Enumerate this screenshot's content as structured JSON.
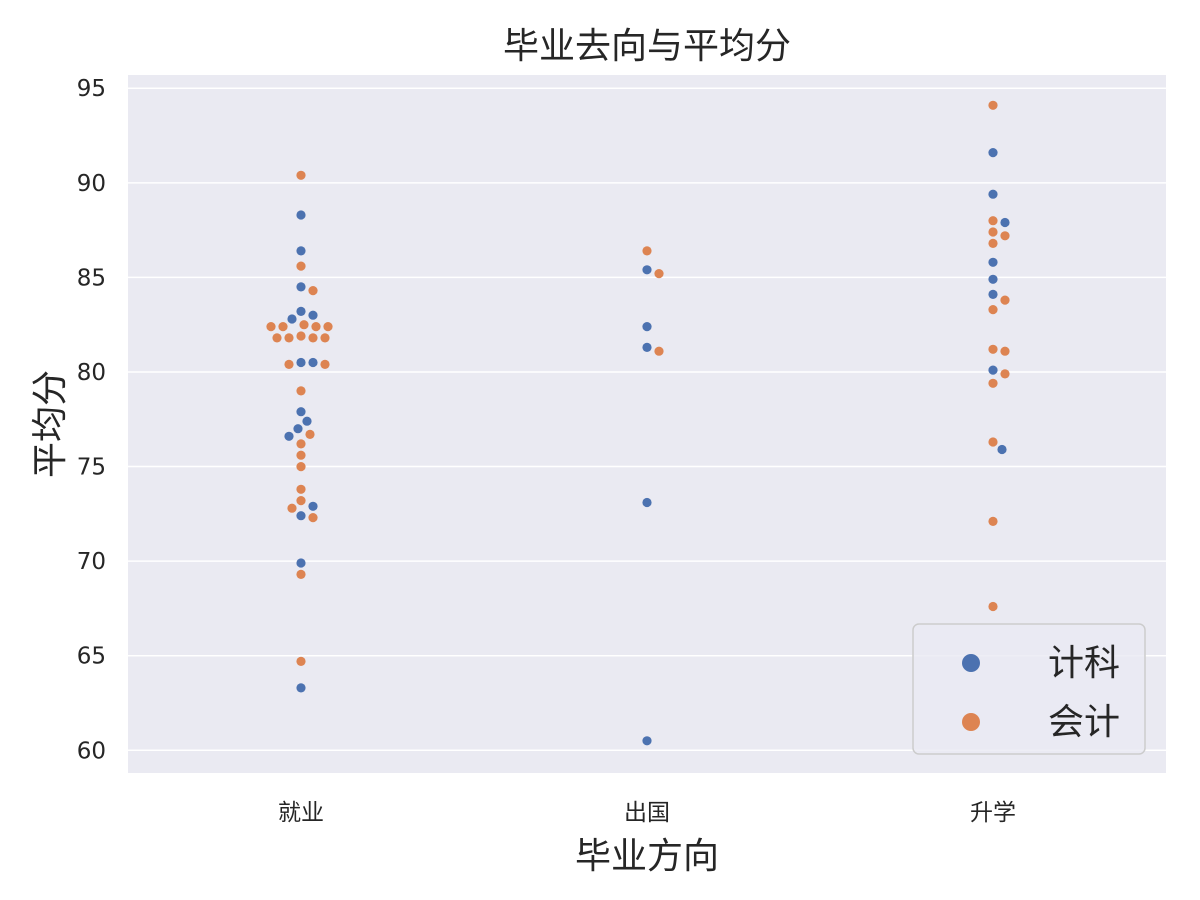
{
  "chart_data": {
    "type": "scatter",
    "title": "毕业去向与平均分",
    "xlabel": "毕业方向",
    "ylabel": "平均分",
    "categories": [
      "就业",
      "出国",
      "升学"
    ],
    "ylim": [
      58.8,
      95.7
    ],
    "yticks": [
      60,
      65,
      70,
      75,
      80,
      85,
      90,
      95
    ],
    "grid": true,
    "legend_position": "bottom-right",
    "series": [
      {
        "name": "计科",
        "color": "#4c72b0",
        "points": [
          {
            "x": "就业",
            "y": 88.3
          },
          {
            "x": "就业",
            "y": 86.4
          },
          {
            "x": "就业",
            "y": 84.5
          },
          {
            "x": "就业",
            "y": 83.2
          },
          {
            "x": "就业",
            "y": 83.0
          },
          {
            "x": "就业",
            "y": 82.8
          },
          {
            "x": "就业",
            "y": 80.5
          },
          {
            "x": "就业",
            "y": 80.5
          },
          {
            "x": "就业",
            "y": 77.9
          },
          {
            "x": "就业",
            "y": 77.4
          },
          {
            "x": "就业",
            "y": 77.0
          },
          {
            "x": "就业",
            "y": 76.6
          },
          {
            "x": "就业",
            "y": 72.9
          },
          {
            "x": "就业",
            "y": 72.4
          },
          {
            "x": "就业",
            "y": 69.9
          },
          {
            "x": "就业",
            "y": 63.3
          },
          {
            "x": "出国",
            "y": 85.4
          },
          {
            "x": "出国",
            "y": 82.4
          },
          {
            "x": "出国",
            "y": 81.3
          },
          {
            "x": "出国",
            "y": 73.1
          },
          {
            "x": "出国",
            "y": 60.5
          },
          {
            "x": "升学",
            "y": 91.6
          },
          {
            "x": "升学",
            "y": 89.4
          },
          {
            "x": "升学",
            "y": 87.9
          },
          {
            "x": "升学",
            "y": 85.8
          },
          {
            "x": "升学",
            "y": 84.9
          },
          {
            "x": "升学",
            "y": 84.1
          },
          {
            "x": "升学",
            "y": 80.1
          },
          {
            "x": "升学",
            "y": 75.9
          }
        ]
      },
      {
        "name": "会计",
        "color": "#dd8452",
        "points": [
          {
            "x": "就业",
            "y": 90.4
          },
          {
            "x": "就业",
            "y": 85.6
          },
          {
            "x": "就业",
            "y": 84.3
          },
          {
            "x": "就业",
            "y": 82.5
          },
          {
            "x": "就业",
            "y": 82.4
          },
          {
            "x": "就业",
            "y": 82.4
          },
          {
            "x": "就业",
            "y": 82.4
          },
          {
            "x": "就业",
            "y": 82.4
          },
          {
            "x": "就业",
            "y": 81.9
          },
          {
            "x": "就业",
            "y": 81.8
          },
          {
            "x": "就业",
            "y": 81.8
          },
          {
            "x": "就业",
            "y": 81.8
          },
          {
            "x": "就业",
            "y": 81.8
          },
          {
            "x": "就业",
            "y": 80.4
          },
          {
            "x": "就业",
            "y": 80.4
          },
          {
            "x": "就业",
            "y": 79.0
          },
          {
            "x": "就业",
            "y": 76.7
          },
          {
            "x": "就业",
            "y": 76.2
          },
          {
            "x": "就业",
            "y": 75.6
          },
          {
            "x": "就业",
            "y": 75.0
          },
          {
            "x": "就业",
            "y": 73.8
          },
          {
            "x": "就业",
            "y": 73.2
          },
          {
            "x": "就业",
            "y": 72.8
          },
          {
            "x": "就业",
            "y": 72.3
          },
          {
            "x": "就业",
            "y": 69.3
          },
          {
            "x": "就业",
            "y": 64.7
          },
          {
            "x": "出国",
            "y": 86.4
          },
          {
            "x": "出国",
            "y": 85.2
          },
          {
            "x": "出国",
            "y": 81.1
          },
          {
            "x": "升学",
            "y": 94.1
          },
          {
            "x": "升学",
            "y": 88.0
          },
          {
            "x": "升学",
            "y": 87.4
          },
          {
            "x": "升学",
            "y": 87.2
          },
          {
            "x": "升学",
            "y": 86.8
          },
          {
            "x": "升学",
            "y": 83.8
          },
          {
            "x": "升学",
            "y": 83.3
          },
          {
            "x": "升学",
            "y": 81.2
          },
          {
            "x": "升学",
            "y": 81.1
          },
          {
            "x": "升学",
            "y": 79.9
          },
          {
            "x": "升学",
            "y": 79.4
          },
          {
            "x": "升学",
            "y": 76.3
          },
          {
            "x": "升学",
            "y": 72.1
          },
          {
            "x": "升学",
            "y": 67.6
          }
        ]
      }
    ]
  }
}
